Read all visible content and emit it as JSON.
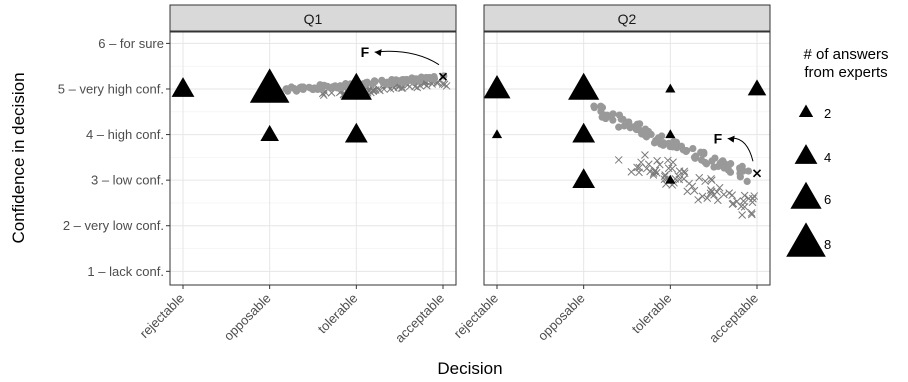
{
  "chart_data": {
    "type": "scatter",
    "xlabel": "Decision",
    "ylabel": "Confidence in decision",
    "x_categories": [
      "rejectable",
      "opposable",
      "tolerable",
      "acceptable"
    ],
    "y_levels": [
      {
        "value": 1,
        "label": "1 – lack conf."
      },
      {
        "value": 2,
        "label": "2 – very low conf."
      },
      {
        "value": 3,
        "label": "3 – low conf."
      },
      {
        "value": 4,
        "label": "4 – high conf."
      },
      {
        "value": 5,
        "label": "5 – very high conf."
      },
      {
        "value": 6,
        "label": "6 – for sure"
      }
    ],
    "xlim": [
      0.85,
      4.15
    ],
    "ylim": [
      0.7,
      6.25
    ],
    "grid": true,
    "legend": {
      "title_lines": [
        "# of answers",
        "from experts"
      ],
      "placement": "right",
      "entries": [
        {
          "count": 2,
          "label": "2"
        },
        {
          "count": 4,
          "label": "4"
        },
        {
          "count": 6,
          "label": "6"
        },
        {
          "count": 8,
          "label": "8"
        }
      ]
    },
    "panels": [
      {
        "name": "Q1",
        "experts": [
          {
            "x": 1,
            "y": 5,
            "count": 4
          },
          {
            "x": 2,
            "y": 5,
            "count": 8
          },
          {
            "x": 2,
            "y": 4,
            "count": 3
          },
          {
            "x": 3,
            "y": 5,
            "count": 6
          },
          {
            "x": 3,
            "y": 4,
            "count": 4
          }
        ],
        "trajectory": {
          "from": [
            2.2,
            4.98
          ],
          "to": [
            3.95,
            5.25
          ],
          "jitter": 0.05
        },
        "cross_cloud": {
          "from": [
            2.7,
            4.93
          ],
          "to": [
            4.0,
            5.15
          ],
          "jitter": 0.08
        },
        "final_marker": {
          "x": 4.0,
          "y": 5.27
        },
        "annotation": {
          "text": "F",
          "x": 3.05,
          "y": 5.7
        }
      },
      {
        "name": "Q2",
        "experts": [
          {
            "x": 1,
            "y": 5,
            "count": 5
          },
          {
            "x": 1,
            "y": 4,
            "count": 1
          },
          {
            "x": 2,
            "y": 5,
            "count": 6
          },
          {
            "x": 2,
            "y": 4,
            "count": 4
          },
          {
            "x": 2,
            "y": 3,
            "count": 4
          },
          {
            "x": 3,
            "y": 5,
            "count": 1
          },
          {
            "x": 3,
            "y": 4,
            "count": 1
          },
          {
            "x": 3,
            "y": 3,
            "count": 1
          },
          {
            "x": 4,
            "y": 5,
            "count": 3
          }
        ],
        "trajectory": {
          "from": [
            2.1,
            4.55
          ],
          "to": [
            3.9,
            3.1
          ],
          "jitter": 0.13
        },
        "cross_cloud": {
          "from": [
            2.5,
            3.5
          ],
          "to": [
            3.95,
            2.4
          ],
          "jitter": 0.25
        },
        "final_marker": {
          "x": 4.0,
          "y": 3.15
        },
        "annotation": {
          "text": "F",
          "x": 3.5,
          "y": 3.8
        }
      }
    ]
  }
}
